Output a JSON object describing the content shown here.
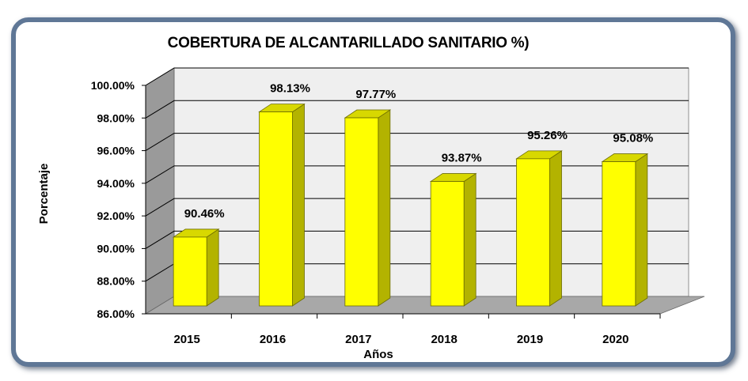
{
  "chart_data": {
    "type": "bar",
    "title": "COBERTURA DE ALCANTARILLADO SANITARIO %)",
    "xlabel": "Años",
    "ylabel": "Porcentaje",
    "categories": [
      "2015",
      "2016",
      "2017",
      "2018",
      "2019",
      "2020"
    ],
    "values": [
      90.46,
      98.13,
      97.77,
      93.87,
      95.26,
      95.08
    ],
    "value_labels": [
      "90.46%",
      "98.13%",
      "97.77%",
      "93.87%",
      "95.26%",
      "95.08%"
    ],
    "ylim": [
      86,
      100
    ],
    "yticks": [
      86,
      88,
      90,
      92,
      94,
      96,
      98,
      100
    ],
    "ytick_labels": [
      "86.00%",
      "88.00%",
      "90.00%",
      "92.00%",
      "94.00%",
      "96.00%",
      "98.00%",
      "100.00%"
    ],
    "grid": true,
    "legend": "none",
    "style": "3d-column"
  },
  "colors": {
    "bar_front": "#ffff00",
    "bar_top": "#d8d800",
    "bar_side": "#b3b300",
    "bar_outline": "#6b6b00",
    "back_wall": "#efefef",
    "side_wall": "#9a9a9a",
    "floor": "#a8a8a8",
    "gridline": "#000000",
    "frame": "#5f7796"
  }
}
